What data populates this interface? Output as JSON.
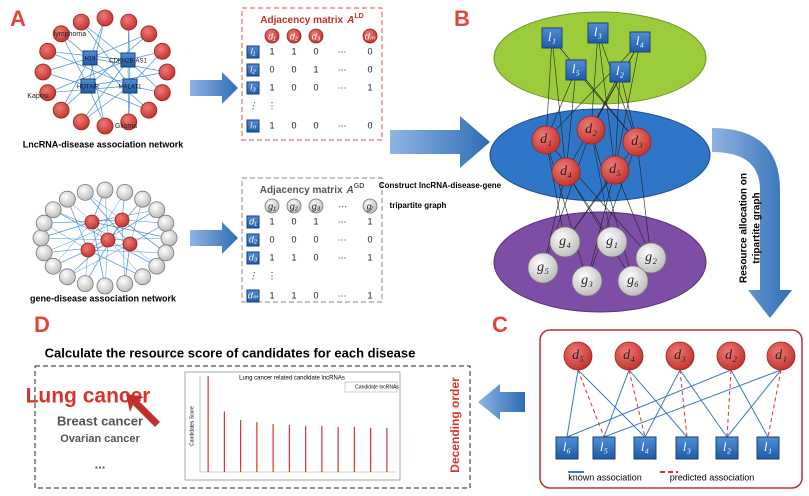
{
  "panel_labels": [
    "A",
    "B",
    "C",
    "D"
  ],
  "lncrna_network": {
    "caption": "LncRNA-disease association network",
    "hubs": [
      "H19",
      "CDKN2B-AS1",
      "HOTAIR",
      "MALAT1"
    ],
    "diseases": [
      "lymphoma",
      "Kaposi",
      "Glioma"
    ]
  },
  "gene_network": {
    "caption": "gene-disease association network"
  },
  "matrix_ld": {
    "title": "Adjacency matrix",
    "symbol": "A",
    "superscript": "LD",
    "columns": [
      "d₁",
      "d₂",
      "d₃",
      "⋯",
      "dₘ"
    ],
    "rows": [
      {
        "label": "l₁",
        "cells": [
          "1",
          "1",
          "0",
          "⋯",
          "0"
        ]
      },
      {
        "label": "l₂",
        "cells": [
          "0",
          "0",
          "1",
          "⋯",
          "0"
        ]
      },
      {
        "label": "l₃",
        "cells": [
          "1",
          "0",
          "0",
          "⋯",
          "1"
        ]
      },
      {
        "label": "⋮",
        "cells": [
          "⋮"
        ]
      },
      {
        "label": "lₙ",
        "cells": [
          "1",
          "0",
          "0",
          "⋯",
          "0"
        ]
      }
    ]
  },
  "matrix_gd": {
    "title": "Adjacency matrix",
    "symbol": "A",
    "superscript": "GD",
    "columns": [
      "g₁",
      "g₂",
      "g₃",
      "⋯",
      "gᵣ"
    ],
    "rows": [
      {
        "label": "d₁",
        "cells": [
          "1",
          "0",
          "1",
          "⋯",
          "1"
        ]
      },
      {
        "label": "d₂",
        "cells": [
          "0",
          "0",
          "0",
          "⋯",
          "0"
        ]
      },
      {
        "label": "d₃",
        "cells": [
          "1",
          "1",
          "0",
          "⋯",
          "1"
        ]
      },
      {
        "label": "⋮",
        "cells": [
          "⋮"
        ]
      },
      {
        "label": "dₘ",
        "cells": [
          "1",
          "1",
          "0",
          "⋯",
          "1"
        ]
      }
    ]
  },
  "construct_text": [
    "Construct  lncRNA-disease-gene",
    "tripartite graph"
  ],
  "tripartite": {
    "lncrnas": [
      "l₁",
      "l₃",
      "l₄",
      "l₅",
      "l₂"
    ],
    "diseases": [
      "d₁",
      "d₂",
      "d₃",
      "d₄",
      "d₅"
    ],
    "genes": [
      "g₄",
      "g₁",
      "g₂",
      "g₅",
      "g₃",
      "g₆"
    ]
  },
  "resource_text": [
    "Resource allocation on",
    "tripartite graph"
  ],
  "bipartite": {
    "diseases": [
      "d₅",
      "d₄",
      "d₃",
      "d₂",
      "d₁"
    ],
    "lncrnas": [
      "l₆",
      "l₅",
      "l₄",
      "l₃",
      "l₂",
      "l₁"
    ],
    "legend_known": "known association",
    "legend_predicted": "predicted association"
  },
  "ranking": {
    "heading": "Calculate the resource score of candidates for each disease",
    "diseases": [
      "Lung cancer",
      "Breast cancer",
      "Ovarian cancer",
      "..."
    ],
    "order_label": "Decending order",
    "chart": {
      "title": "Lung cancer related candidate lncRNAs",
      "legend": "Candidate lncRNAs",
      "y_label": "Candidates Score",
      "values": [
        10,
        6.3,
        5.4,
        5.2,
        5.0,
        4.9,
        4.8,
        4.8,
        4.7,
        4.7,
        4.6,
        4.6
      ],
      "ylim": [
        0,
        10
      ]
    }
  }
}
